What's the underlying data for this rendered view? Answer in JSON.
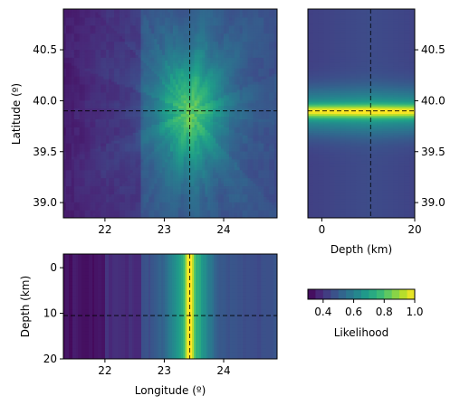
{
  "chart_data": [
    {
      "type": "heatmap",
      "panel": "map",
      "xlabel": "",
      "ylabel": "Latitude (º)",
      "xlim": [
        21.3,
        24.9
      ],
      "ylim": [
        38.85,
        40.9
      ],
      "xticks": [
        22,
        23,
        24
      ],
      "yticks": [
        39.0,
        39.5,
        40.0,
        40.5
      ],
      "xtick_labels": [
        "22",
        "23",
        "24"
      ],
      "ytick_labels": [
        "39.0",
        "39.5",
        "40.0",
        "40.5"
      ],
      "best_fit": {
        "longitude": 23.43,
        "latitude": 39.9
      },
      "peak_likelihood": 0.75,
      "background_likelihood": 0.3
    },
    {
      "type": "heatmap",
      "panel": "latitude-depth",
      "xlabel": "Depth (km)",
      "ylabel": "",
      "xlim": [
        -3,
        20
      ],
      "ylim": [
        38.85,
        40.9
      ],
      "xticks": [
        0,
        20
      ],
      "yticks": [
        39.0,
        39.5,
        40.0,
        40.5
      ],
      "xtick_labels": [
        "0",
        "20"
      ],
      "ytick_labels": [
        "39.0",
        "39.5",
        "40.0",
        "40.5"
      ],
      "best_fit": {
        "depth": 10.5,
        "latitude": 39.9
      },
      "peak_likelihood": 1.0,
      "background_likelihood": 0.4
    },
    {
      "type": "heatmap",
      "panel": "depth-longitude",
      "xlabel": "Longitude (º)",
      "ylabel": "Depth (km)",
      "xlim": [
        21.3,
        24.9
      ],
      "ylim": [
        20,
        -3
      ],
      "xticks": [
        22,
        23,
        24
      ],
      "yticks": [
        0,
        10,
        20
      ],
      "xtick_labels": [
        "22",
        "23",
        "24"
      ],
      "ytick_labels": [
        "0",
        "10",
        "20"
      ],
      "best_fit": {
        "longitude": 23.43,
        "depth": 10.5
      },
      "peak_likelihood": 1.0,
      "background_likelihood": 0.35
    }
  ],
  "colorbar": {
    "label": "Likelihood",
    "colormap": "viridis",
    "range": [
      0.3,
      1.0
    ],
    "ticks": [
      0.4,
      0.6,
      0.8,
      1.0
    ],
    "tick_labels": [
      "0.4",
      "0.6",
      "0.8",
      "1.0"
    ]
  }
}
